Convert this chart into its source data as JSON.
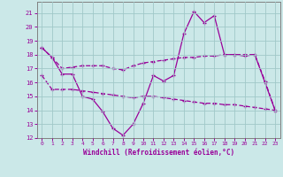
{
  "xlabel": "Windchill (Refroidissement éolien,°C)",
  "xlim": [
    -0.5,
    23.5
  ],
  "ylim": [
    12,
    21.8
  ],
  "yticks": [
    12,
    13,
    14,
    15,
    16,
    17,
    18,
    19,
    20,
    21
  ],
  "xticks": [
    0,
    1,
    2,
    3,
    4,
    5,
    6,
    7,
    8,
    9,
    10,
    11,
    12,
    13,
    14,
    15,
    16,
    17,
    18,
    19,
    20,
    21,
    22,
    23
  ],
  "bg_color": "#cbe8e8",
  "grid_color": "#a0c8c8",
  "line_color": "#990099",
  "line1_x": [
    0,
    1,
    2,
    3,
    4,
    5,
    6,
    7,
    8,
    9,
    10,
    11,
    12,
    13,
    14,
    15,
    16,
    17,
    18,
    19,
    20,
    21,
    22,
    23
  ],
  "line1_y": [
    18.5,
    17.8,
    16.6,
    16.6,
    15.0,
    14.8,
    13.9,
    12.7,
    12.2,
    13.0,
    14.5,
    16.5,
    16.1,
    16.5,
    19.5,
    21.1,
    20.3,
    20.8,
    18.0,
    18.0,
    17.9,
    18.0,
    16.0,
    14.0
  ],
  "line2_x": [
    0,
    1,
    2,
    3,
    4,
    5,
    6,
    7,
    8,
    9,
    10,
    11,
    12,
    13,
    14,
    15,
    16,
    17,
    18,
    19,
    20,
    21,
    22,
    23
  ],
  "line2_y": [
    18.5,
    17.8,
    17.0,
    17.1,
    17.2,
    17.2,
    17.2,
    17.0,
    16.9,
    17.2,
    17.4,
    17.5,
    17.6,
    17.7,
    17.8,
    17.8,
    17.9,
    17.9,
    18.0,
    18.0,
    18.0,
    18.0,
    16.1,
    14.0
  ],
  "line3_x": [
    0,
    1,
    2,
    3,
    4,
    5,
    6,
    7,
    8,
    9,
    10,
    11,
    12,
    13,
    14,
    15,
    16,
    17,
    18,
    19,
    20,
    21,
    22,
    23
  ],
  "line3_y": [
    16.5,
    15.5,
    15.5,
    15.5,
    15.4,
    15.3,
    15.2,
    15.1,
    15.0,
    14.9,
    15.0,
    15.0,
    14.9,
    14.8,
    14.7,
    14.6,
    14.5,
    14.5,
    14.4,
    14.4,
    14.3,
    14.2,
    14.1,
    14.0
  ]
}
